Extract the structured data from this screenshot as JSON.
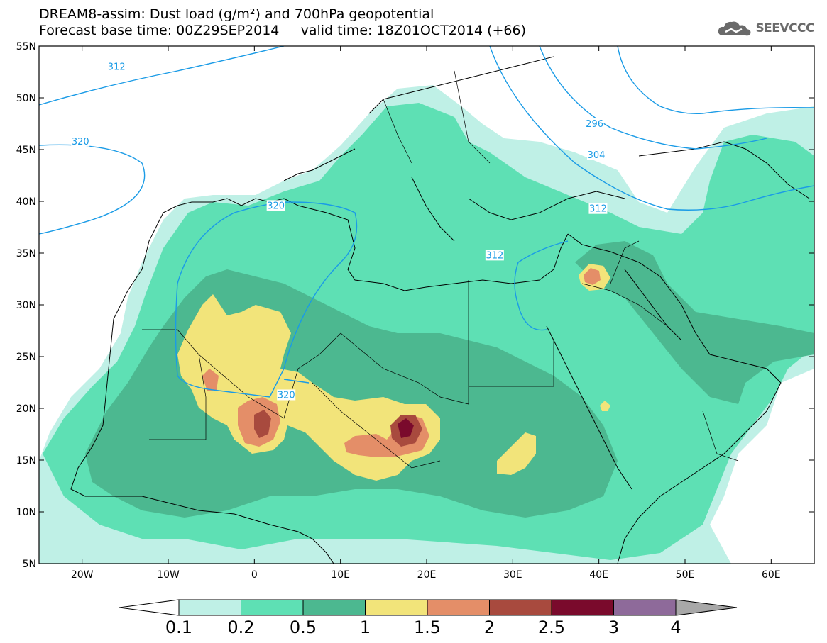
{
  "title": {
    "line1": "DREAM8-assim: Dust load (g/m²) and 700hPa geopotential",
    "line2": "Forecast base time: 00Z29SEP2014     valid time: 18Z01OCT2014 (+66)"
  },
  "logo": {
    "text": "SEEVCCC",
    "icon": "cloud-logo-icon",
    "color": "#6a6a6a"
  },
  "map": {
    "lon_range": [
      -25,
      65
    ],
    "lat_range": [
      5,
      55
    ],
    "x_ticks": [
      "20W",
      "10W",
      "0",
      "10E",
      "20E",
      "30E",
      "40E",
      "50E",
      "60E"
    ],
    "y_ticks": [
      "55N",
      "50N",
      "45N",
      "40N",
      "35N",
      "30N",
      "25N",
      "20N",
      "15N",
      "10N",
      "5N"
    ],
    "contour_color": "#1a9be6",
    "contour_labels": [
      "312",
      "320",
      "320",
      "320",
      "296",
      "304",
      "312",
      "312"
    ]
  },
  "colorbar": {
    "ticks": [
      "0.1",
      "0.2",
      "0.5",
      "1",
      "1.5",
      "2",
      "2.5",
      "3",
      "4"
    ],
    "colors": [
      "#bff0e6",
      "#5ee0b4",
      "#4cb890",
      "#f2e47a",
      "#e48e68",
      "#a84a3e",
      "#7a0a2c",
      "#8e6a9a"
    ],
    "below_color": "#ffffff",
    "above_color": "#a8a8a8"
  }
}
